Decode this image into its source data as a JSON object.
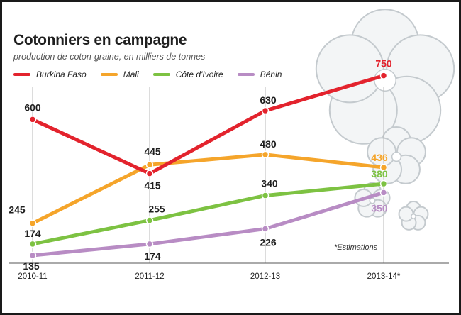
{
  "chart_data": {
    "type": "line",
    "title": "Cotonniers en campagne",
    "subtitle": "production de coton-graine, en milliers de tonnes",
    "categories": [
      "2010-11",
      "2011-12",
      "2012-13",
      "2013-14*"
    ],
    "series": [
      {
        "name": "Burkina Faso",
        "color": "#e3232d",
        "values": [
          600,
          415,
          630,
          750
        ],
        "labels": [
          "600",
          "415",
          "630",
          "750"
        ]
      },
      {
        "name": "Mali",
        "color": "#f5a52b",
        "values": [
          245,
          445,
          480,
          436
        ],
        "labels": [
          "245",
          "445",
          "480",
          "436"
        ]
      },
      {
        "name": "Côte d'Ivoire",
        "color": "#7dc242",
        "values": [
          174,
          255,
          340,
          380
        ],
        "labels": [
          "174",
          "255",
          "340",
          "380"
        ]
      },
      {
        "name": "Bénin",
        "color": "#b88cc4",
        "values": [
          135,
          174,
          226,
          350
        ],
        "labels": [
          "135",
          "174",
          "226",
          "350"
        ]
      }
    ],
    "annotation": "*Estimations",
    "xlabel": "",
    "ylabel": "",
    "ylim": [
      100,
      800
    ],
    "grid": "vertical"
  }
}
